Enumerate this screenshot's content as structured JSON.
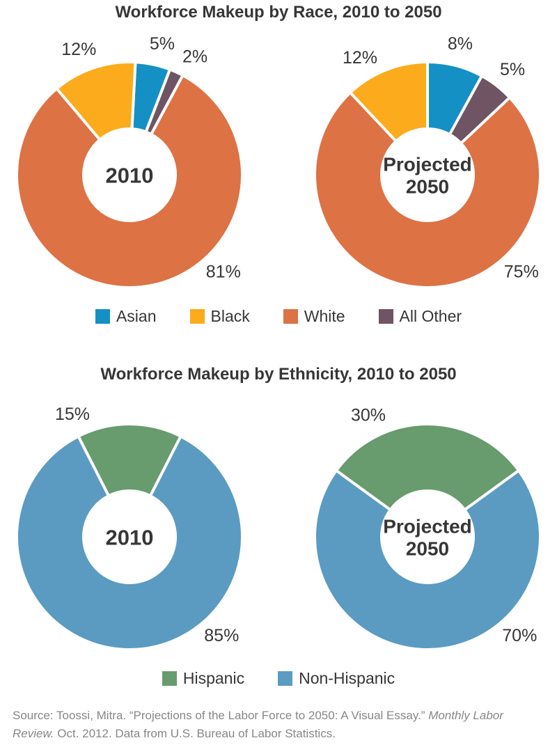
{
  "text_color": "#363636",
  "source_color": "#878787",
  "chart_data": [
    {
      "type": "donut",
      "title": "Workforce Makeup by Race, 2010 to 2050",
      "unit": "percent",
      "legend_position": "bottom",
      "legend": [
        {
          "label": "Asian",
          "color": "#1590C5"
        },
        {
          "label": "Black",
          "color": "#FBAB1C"
        },
        {
          "label": "White",
          "color": "#DD7245"
        },
        {
          "label": "All Other",
          "color": "#6F5463"
        }
      ],
      "donuts": [
        {
          "center_label_lines": [
            "2010"
          ],
          "start_angle": 3,
          "slices": [
            {
              "category": "Asian",
              "value": 5,
              "label": "5%",
              "color": "#1590C5",
              "label_angle": 14
            },
            {
              "category": "All Other",
              "value": 2,
              "label": "2%",
              "color": "#6F5463",
              "label_angle": 29
            },
            {
              "category": "White",
              "value": 81,
              "label": "81%",
              "color": "#DD7245",
              "label_angle": 136
            },
            {
              "category": "Black",
              "value": 12,
              "label": "12%",
              "color": "#FBAB1C",
              "label_angle": -22
            }
          ]
        },
        {
          "center_label_lines": [
            "Projected",
            "2050"
          ],
          "start_angle": 0,
          "slices": [
            {
              "category": "Asian",
              "value": 8,
              "label": "8%",
              "color": "#1590C5",
              "label_angle": 14
            },
            {
              "category": "All Other",
              "value": 5,
              "label": "5%",
              "color": "#6F5463",
              "label_angle": 39
            },
            {
              "category": "White",
              "value": 75,
              "label": "75%",
              "color": "#DD7245",
              "label_angle": 136
            },
            {
              "category": "Black",
              "value": 12,
              "label": "12%",
              "color": "#FBAB1C",
              "label_angle": -30
            }
          ]
        }
      ]
    },
    {
      "type": "donut",
      "title": "Workforce Makeup by Ethnicity, 2010 to 2050",
      "unit": "percent",
      "legend_position": "bottom",
      "legend": [
        {
          "label": "Hispanic",
          "color": "#689B6E"
        },
        {
          "label": "Non-Hispanic",
          "color": "#5B9BC1"
        }
      ],
      "donuts": [
        {
          "center_label_lines": [
            "2010"
          ],
          "start_angle": -27,
          "slices": [
            {
              "category": "Hispanic",
              "value": 15,
              "label": "15%",
              "color": "#689B6E",
              "label_angle": -25
            },
            {
              "category": "Non-Hispanic",
              "value": 85,
              "label": "85%",
              "color": "#5B9BC1",
              "label_angle": 137
            }
          ]
        },
        {
          "center_label_lines": [
            "Projected",
            "2050"
          ],
          "start_angle": -54,
          "slices": [
            {
              "category": "Hispanic",
              "value": 30,
              "label": "30%",
              "color": "#689B6E",
              "label_angle": -26
            },
            {
              "category": "Non-Hispanic",
              "value": 70,
              "label": "70%",
              "color": "#5B9BC1",
              "label_angle": 137
            }
          ]
        }
      ]
    }
  ],
  "source": {
    "part1": "Source: Toossi, Mitra. “Projections of the Labor Force to 2050: A Visual Essay.” ",
    "italic": "Monthly Labor Review.",
    "part2": " Oct. 2012. Data from U.S. Bureau of Labor Statistics."
  }
}
